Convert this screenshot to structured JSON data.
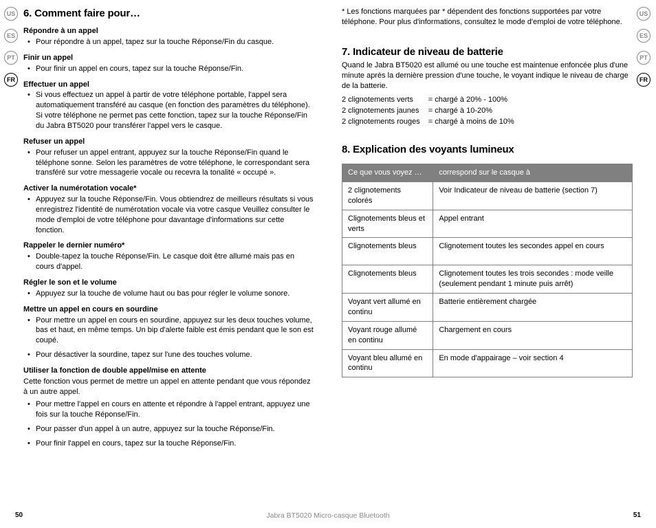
{
  "lang_badges": [
    "US",
    "ES",
    "PT",
    "FR"
  ],
  "active_lang": "FR",
  "left": {
    "h2": "6. Comment faire pour…",
    "sections": [
      {
        "h": "Répondre à un appel",
        "items": [
          "Pour répondre à un appel, tapez sur la touche Réponse/Fin du casque."
        ]
      },
      {
        "h": "Finir un appel",
        "items": [
          "Pour finir un appel en cours, tapez sur la touche Réponse/Fin."
        ]
      },
      {
        "h": "Effectuer un appel",
        "items": [
          "Si vous effectuez un appel à partir de votre téléphone portable, l'appel sera automatiquement transféré au casque (en fonction des paramètres du téléphone). Si votre téléphone ne permet pas cette fonction, tapez sur la touche Réponse/Fin du Jabra BT5020 pour transférer l'appel vers le casque."
        ]
      },
      {
        "h": "Refuser un appel",
        "items": [
          "Pour refuser un appel entrant, appuyez sur la touche Réponse/Fin quand le téléphone sonne. Selon les paramètres de votre téléphone, le correspondant sera transféré sur votre messagerie vocale ou recevra la tonalité « occupé »."
        ]
      },
      {
        "h": "Activer la numérotation vocale*",
        "items": [
          "Appuyez sur la touche Réponse/Fin. Vous obtiendrez de meilleurs résultats si vous enregistrez l'identité de numérotation vocale via votre casque Veuillez consulter le mode d'emploi de votre téléphone pour davantage d'informations sur cette fonction."
        ]
      },
      {
        "h": "Rappeler le dernier numéro*",
        "items": [
          "Double-tapez la touche Réponse/Fin. Le casque doit être allumé mais pas en cours d'appel."
        ]
      },
      {
        "h": "Régler le son et le volume",
        "items": [
          "Appuyez sur la touche de volume haut ou bas pour régler le volume sonore."
        ]
      },
      {
        "h": "Mettre un appel en cours en sourdine",
        "items": [
          "Pour mettre un appel en cours en sourdine, appuyez sur les deux touches volume, bas et haut, en même temps. Un bip d'alerte faible est émis pendant que le son est coupé.",
          "Pour désactiver la sourdine, tapez sur l'une des touches volume."
        ]
      },
      {
        "h": "Utiliser la fonction de double appel/mise en attente",
        "intro": "Cette fonction vous permet de mettre un appel en attente pendant que vous répondez à un autre appel.",
        "items": [
          "Pour mettre l'appel en cours en attente et répondre à l'appel entrant, appuyez une fois sur la touche Réponse/Fin.",
          "Pour passer d'un appel à un autre, appuyez sur la touche Réponse/Fin.",
          "Pour finir l'appel en cours, tapez sur la touche Réponse/Fin."
        ]
      }
    ]
  },
  "right": {
    "disclaimer": "* Les fonctions marquées par * dépendent des fonctions supportées par votre téléphone. Pour plus d'informations, consultez le mode d'emploi de votre téléphone.",
    "h7": "7. Indicateur de niveau de batterie",
    "p7": "Quand le Jabra BT5020 est allumé ou une touche est maintenue enfoncée plus d'une minute après la dernière pression d'une touche, le voyant indique le niveau de charge de la batterie.",
    "levels": [
      {
        "label": "2 clignotements verts",
        "val": "= chargé à 20% - 100%"
      },
      {
        "label": "2 clignotements jaunes",
        "val": "= chargé à 10-20%"
      },
      {
        "label": "2 clignotements rouges",
        "val": "= chargé à moins de 10%"
      }
    ],
    "h8": "8. Explication des voyants lumineux",
    "table_head": [
      "Ce que vous voyez …",
      "correspond sur le casque à"
    ],
    "table_rows": [
      [
        "2 clignotements colorés",
        "Voir Indicateur de niveau de batterie (section 7)"
      ],
      [
        "Clignotements bleus et verts",
        "Appel entrant"
      ],
      [
        "Clignotements bleus",
        "Clignotement toutes les secondes appel en cours"
      ],
      [
        "Clignotements bleus",
        "Clignotement toutes les trois secondes : mode veille (seulement pendant 1 minute puis arrêt)"
      ],
      [
        "Voyant vert allumé en continu",
        "Batterie entièrement chargée"
      ],
      [
        "Voyant rouge allumé en continu",
        "Chargement en cours"
      ],
      [
        "Voyant bleu allumé en continu",
        "En mode d'appairage – voir section 4"
      ]
    ]
  },
  "footer": {
    "left_pg": "50",
    "title": "Jabra BT5020 Micro-casque Bluetooth",
    "right_pg": "51"
  }
}
